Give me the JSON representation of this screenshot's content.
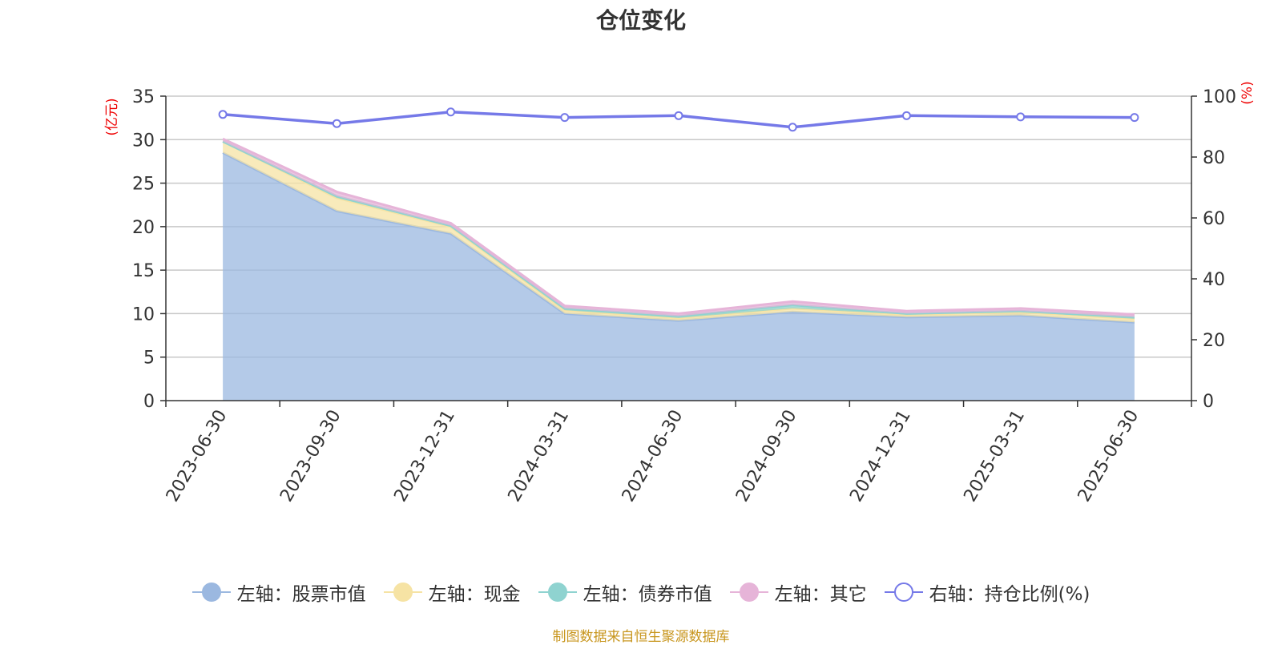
{
  "chart_data": {
    "type": "area",
    "title": "仓位变化",
    "categories": [
      "2023-06-30",
      "2023-09-30",
      "2023-12-31",
      "2024-03-31",
      "2024-06-30",
      "2024-09-30",
      "2024-12-31",
      "2025-03-31",
      "2025-06-30"
    ],
    "left_axis": {
      "unit": "(亿元)",
      "ylim": [
        0,
        35
      ],
      "ticks": [
        "0",
        "5",
        "10",
        "15",
        "20",
        "25",
        "30",
        "35"
      ]
    },
    "right_axis": {
      "unit": "(%)",
      "ylim": [
        0,
        100
      ],
      "ticks": [
        "0",
        "20",
        "40",
        "60",
        "80",
        "100"
      ]
    },
    "stack_series": [
      {
        "name": "左轴：股票市值",
        "color": "#9bb8e0",
        "values": [
          28.5,
          21.8,
          19.2,
          10.0,
          9.2,
          10.2,
          9.6,
          9.8,
          9.0
        ]
      },
      {
        "name": "左轴：现金",
        "color": "#f6e3a4",
        "values": [
          1.3,
          1.5,
          0.8,
          0.4,
          0.3,
          0.4,
          0.3,
          0.4,
          0.4
        ]
      },
      {
        "name": "左轴：债券市值",
        "color": "#8fd3d0",
        "values": [
          0.0,
          0.2,
          0.1,
          0.2,
          0.2,
          0.4,
          0.1,
          0.1,
          0.2
        ]
      },
      {
        "name": "左轴：其它",
        "color": "#e6b4d8",
        "values": [
          0.3,
          0.5,
          0.3,
          0.3,
          0.3,
          0.4,
          0.3,
          0.3,
          0.3
        ]
      }
    ],
    "line_series": {
      "name": "右轴：持仓比例(%)",
      "color": "#7579e8",
      "values": [
        94.0,
        91.0,
        94.8,
        93.0,
        93.6,
        89.8,
        93.6,
        93.2,
        93.0
      ]
    },
    "grid": true,
    "legend_position": "bottom"
  },
  "source_note": "制图数据来自恒生聚源数据库"
}
